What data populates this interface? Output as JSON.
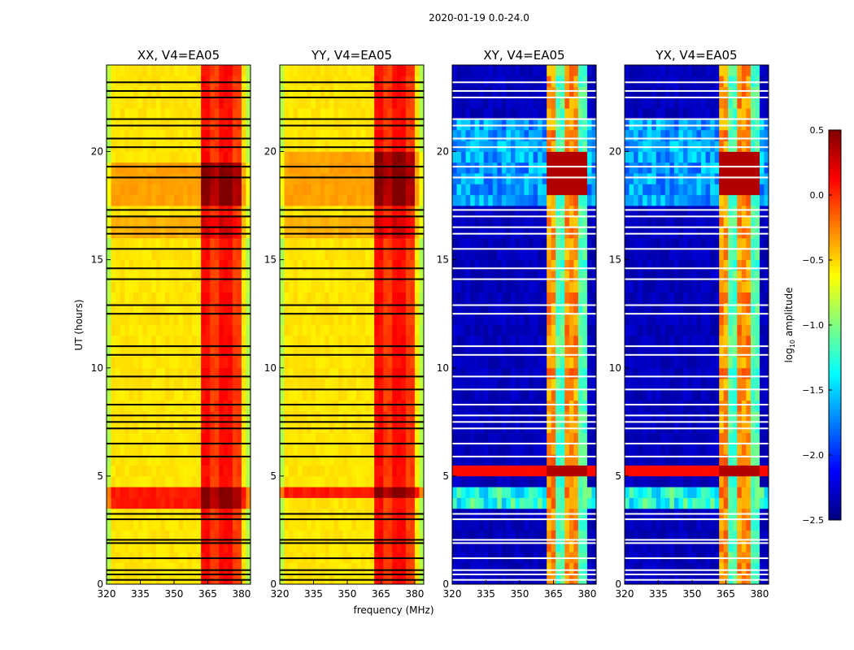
{
  "chart_data": {
    "type": "heatmap",
    "title": "2020-01-19 0.0-24.0",
    "xlabel": "frequency (MHz)",
    "ylabel": "UT (hours)",
    "xlim": [
      320,
      384
    ],
    "ylim": [
      0,
      24
    ],
    "xticks": [
      "320",
      "335",
      "350",
      "365",
      "380"
    ],
    "xtick_values": [
      320,
      335,
      350,
      365,
      380
    ],
    "yticks": [
      "0",
      "5",
      "10",
      "15",
      "20"
    ],
    "ytick_values": [
      0,
      5,
      10,
      15,
      20
    ],
    "colorbar": {
      "label": "log10 amplitude",
      "label_main": "log",
      "label_sub": "10",
      "label_rest": " amplitude",
      "range": [
        -2.5,
        0.5
      ],
      "ticks": [
        "0.5",
        "0.0",
        "−0.5",
        "−1.0",
        "−1.5",
        "−2.0",
        "−2.5"
      ],
      "tick_values": [
        0.5,
        0.0,
        -0.5,
        -1.0,
        -1.5,
        -2.0,
        -2.5
      ],
      "colormap": "jet"
    },
    "panels": [
      {
        "title": "XX, V4=EA05",
        "kind": "auto",
        "base": -0.55,
        "rfi_band_mhz": [
          362,
          380
        ],
        "rfi_level": -0.05,
        "bright_hours": [
          [
            17.5,
            19.5
          ],
          [
            3.6,
            4.3
          ]
        ],
        "flag_color": "#000000"
      },
      {
        "title": "YY, V4=EA05",
        "kind": "auto",
        "base": -0.55,
        "rfi_band_mhz": [
          362,
          380
        ],
        "rfi_level": -0.05,
        "bright_hours": [
          [
            17.5,
            19.8
          ],
          [
            3.8,
            4.3
          ]
        ],
        "flag_color": "#000000"
      },
      {
        "title": "XY, V4=EA05",
        "kind": "cross",
        "base": -2.4,
        "rfi_band_mhz": [
          362,
          380
        ],
        "rfi_level": -0.5,
        "bright_hours": [
          [
            17.8,
            19.8
          ],
          [
            5.0,
            5.4
          ]
        ],
        "flag_color": "#ffffff"
      },
      {
        "title": "YX, V4=EA05",
        "kind": "cross",
        "base": -2.4,
        "rfi_band_mhz": [
          362,
          380
        ],
        "rfi_level": -0.5,
        "bright_hours": [
          [
            17.8,
            19.8
          ],
          [
            5.0,
            5.4
          ]
        ],
        "flag_color": "#ffffff"
      }
    ],
    "flagged_hours": [
      0.2,
      0.45,
      0.65,
      1.2,
      1.9,
      2.05,
      3.0,
      3.25,
      5.9,
      6.5,
      7.2,
      7.5,
      7.8,
      8.3,
      9.0,
      9.6,
      10.6,
      11.0,
      12.5,
      12.9,
      14.1,
      14.6,
      15.5,
      16.2,
      16.5,
      17.0,
      17.3,
      18.8,
      19.3,
      20.2,
      20.6,
      21.2,
      21.5,
      22.5,
      22.8,
      23.2
    ]
  }
}
